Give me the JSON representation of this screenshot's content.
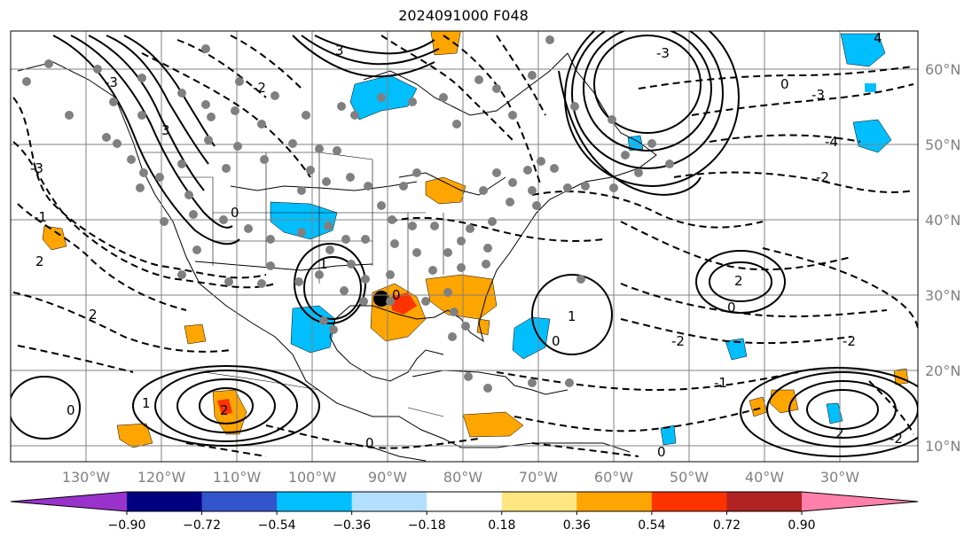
{
  "title": "2024091000 F048",
  "map": {
    "lat_labels": [
      "60°N",
      "50°N",
      "40°N",
      "30°N",
      "20°N",
      "10°N"
    ],
    "lon_labels": [
      "130°W",
      "120°W",
      "110°W",
      "100°W",
      "90°W",
      "80°W",
      "70°W",
      "60°W",
      "50°W",
      "40°W",
      "30°W"
    ],
    "colors": {
      "ocean_land_background": "#ffffff",
      "gridline": "#808080",
      "coastline": "#000000",
      "station_marker": "#808080"
    },
    "contour_labels": [
      "-3",
      "3",
      "-2",
      "-1",
      "0",
      "1",
      "2",
      "-4",
      "4"
    ]
  },
  "colorbar": {
    "extend": "both",
    "bins": [
      {
        "color": "#9933cc"
      },
      {
        "color": "#000080"
      },
      {
        "color": "#3355cc"
      },
      {
        "color": "#00bfff"
      },
      {
        "color": "#b3e0ff"
      },
      {
        "color": "#ffffff"
      },
      {
        "color": "#ffe680"
      },
      {
        "color": "#ffa500"
      },
      {
        "color": "#ff3300"
      },
      {
        "color": "#b22222"
      },
      {
        "color": "#ff80aa"
      }
    ],
    "ticks": [
      "−0.90",
      "−0.72",
      "−0.54",
      "−0.36",
      "−0.18",
      "0.18",
      "0.36",
      "0.54",
      "0.72",
      "0.90"
    ]
  }
}
